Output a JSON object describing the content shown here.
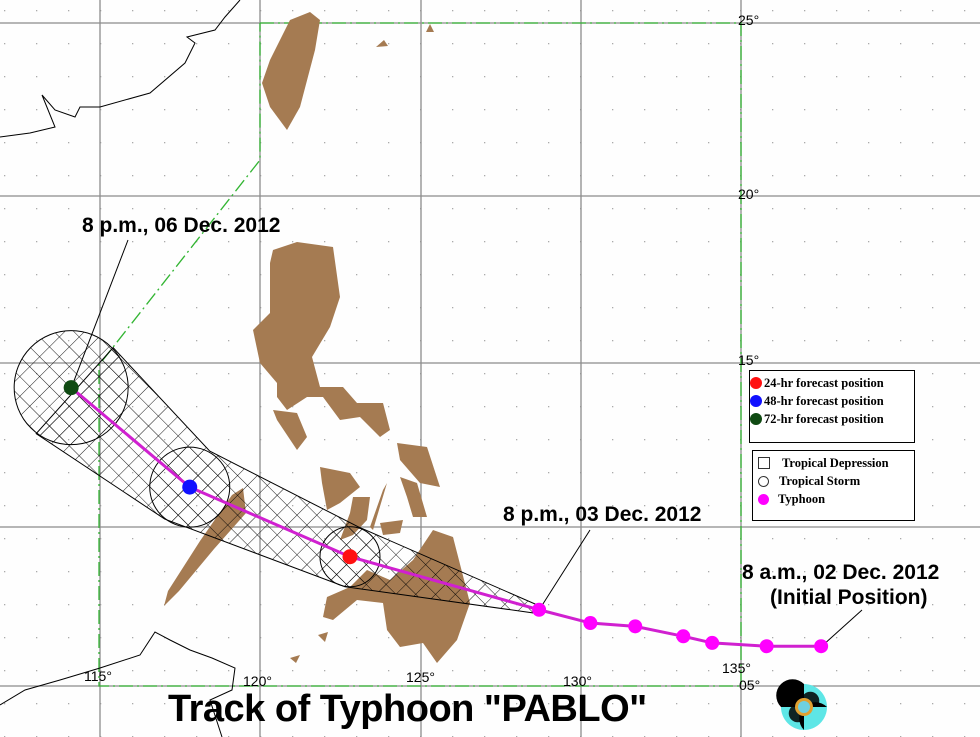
{
  "title": "Track of Typhoon \"PABLO\"",
  "annotations": {
    "forecast_72": "8 p.m., 06 Dec. 2012",
    "current": "8 p.m., 03 Dec. 2012",
    "initial": "8 a.m., 02 Dec. 2012",
    "initial_note": "(Initial Position)"
  },
  "axes": {
    "longitude_labels": [
      "115°",
      "120°",
      "125°",
      "130°",
      "135°"
    ],
    "latitude_labels": [
      "25°",
      "20°",
      "15°",
      "05°"
    ]
  },
  "legend_forecast": [
    {
      "label": "24-hr forecast position",
      "color": "#ff1010"
    },
    {
      "label": "48-hr forecast position",
      "color": "#1010ff"
    },
    {
      "label": "72-hr forecast position",
      "color": "#0f4a12"
    }
  ],
  "legend_category": [
    {
      "label": "Tropical Depression",
      "symbol": "square-outline"
    },
    {
      "label": "Tropical Storm",
      "symbol": "circle-outline"
    },
    {
      "label": "Typhoon",
      "symbol": "magenta-dot",
      "color": "#ff00ff"
    }
  ],
  "track": {
    "observed": [
      {
        "lon": 137.5,
        "lat": 6.2
      },
      {
        "lon": 135.8,
        "lat": 6.2
      },
      {
        "lon": 134.1,
        "lat": 6.3
      },
      {
        "lon": 133.2,
        "lat": 6.5
      },
      {
        "lon": 131.7,
        "lat": 6.8
      },
      {
        "lon": 130.3,
        "lat": 6.9
      },
      {
        "lon": 128.7,
        "lat": 7.3
      }
    ],
    "forecast": [
      {
        "hours": 24,
        "lon": 122.8,
        "lat": 8.9,
        "color": "#ff1010"
      },
      {
        "hours": 48,
        "lon": 117.8,
        "lat": 11.0,
        "color": "#1010ff"
      },
      {
        "hours": 72,
        "lon": 114.1,
        "lat": 14.0,
        "color": "#0f4a12"
      }
    ],
    "track_color": "#d020d0",
    "typhoon_color": "#ff00ff"
  },
  "colors": {
    "land": "#a57b52",
    "grid": "#8c8c8c",
    "boundary": "#33b533"
  }
}
